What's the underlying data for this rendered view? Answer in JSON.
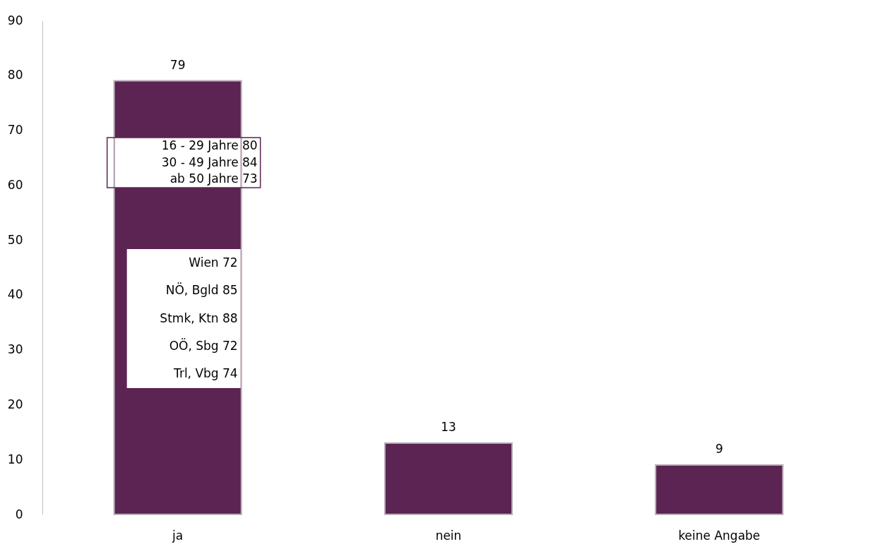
{
  "chart_data": {
    "type": "bar",
    "categories": [
      "ja",
      "nein",
      "keine Angabe"
    ],
    "values": [
      79,
      13,
      9
    ],
    "color": "#5c2452",
    "ylim": [
      0,
      90
    ],
    "yticks": [
      0,
      10,
      20,
      30,
      40,
      50,
      60,
      70,
      80,
      90
    ],
    "grid": false,
    "data_labels": true,
    "annotations": [
      "16 - 29 Jahre 80\n30 - 49 Jahre 84\nab 50 Jahre 73",
      "Wien 72\nNÖ, Bgld 85\nStmk, Ktn 88\nOÖ, Sbg 72\nTrl, Vbg 74"
    ]
  }
}
